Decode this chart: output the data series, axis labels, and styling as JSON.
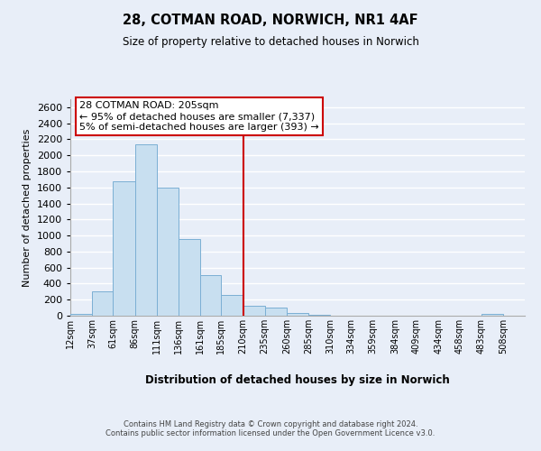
{
  "title": "28, COTMAN ROAD, NORWICH, NR1 4AF",
  "subtitle": "Size of property relative to detached houses in Norwich",
  "xlabel": "Distribution of detached houses by size in Norwich",
  "ylabel": "Number of detached properties",
  "bar_left_edges": [
    12,
    37,
    61,
    86,
    111,
    136,
    161,
    185,
    210,
    235,
    260,
    285,
    310,
    334,
    359,
    384,
    409,
    434,
    458,
    483
  ],
  "bar_heights": [
    20,
    300,
    1680,
    2140,
    1600,
    960,
    510,
    255,
    125,
    100,
    30,
    15,
    5,
    3,
    2,
    2,
    1,
    1,
    1,
    20
  ],
  "bar_widths": [
    25,
    24,
    25,
    25,
    25,
    25,
    24,
    25,
    25,
    25,
    25,
    25,
    24,
    25,
    25,
    25,
    25,
    24,
    25,
    25
  ],
  "bar_color": "#c8dff0",
  "bar_edgecolor": "#7bafd4",
  "vline_x": 210,
  "vline_color": "#cc0000",
  "ylim": [
    0,
    2700
  ],
  "yticks": [
    0,
    200,
    400,
    600,
    800,
    1000,
    1200,
    1400,
    1600,
    1800,
    2000,
    2200,
    2400,
    2600
  ],
  "xtick_labels": [
    "12sqm",
    "37sqm",
    "61sqm",
    "86sqm",
    "111sqm",
    "136sqm",
    "161sqm",
    "185sqm",
    "210sqm",
    "235sqm",
    "260sqm",
    "285sqm",
    "310sqm",
    "334sqm",
    "359sqm",
    "384sqm",
    "409sqm",
    "434sqm",
    "458sqm",
    "483sqm",
    "508sqm"
  ],
  "xtick_positions": [
    12,
    37,
    61,
    86,
    111,
    136,
    161,
    185,
    210,
    235,
    260,
    285,
    310,
    334,
    359,
    384,
    409,
    434,
    458,
    483,
    508
  ],
  "annotation_title": "28 COTMAN ROAD: 205sqm",
  "annotation_line1": "← 95% of detached houses are smaller (7,337)",
  "annotation_line2": "5% of semi-detached houses are larger (393) →",
  "annotation_box_color": "white",
  "annotation_box_edgecolor": "#cc0000",
  "footnote1": "Contains HM Land Registry data © Crown copyright and database right 2024.",
  "footnote2": "Contains public sector information licensed under the Open Government Licence v3.0.",
  "background_color": "#e8eef8",
  "grid_color": "white",
  "xlim": [
    12,
    533
  ]
}
